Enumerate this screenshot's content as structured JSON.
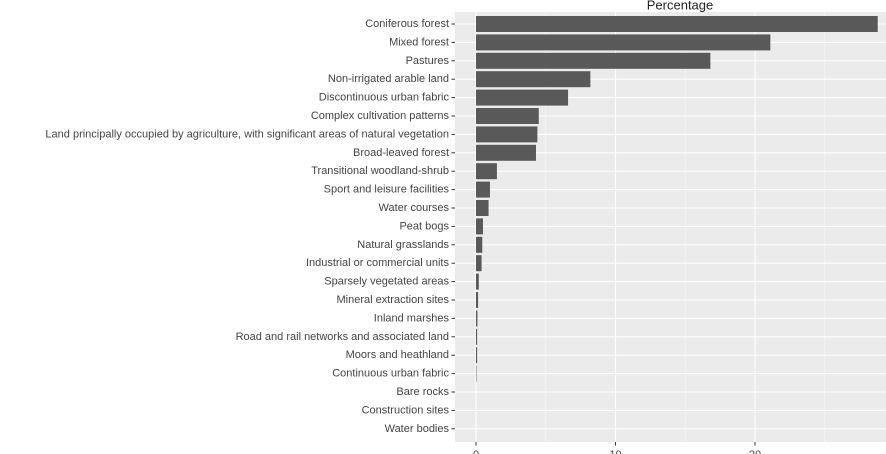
{
  "chart_data": {
    "type": "bar",
    "orientation": "horizontal",
    "title": "Percentage",
    "xlabel": "",
    "ylabel": "",
    "xlim": [
      0,
      29.5
    ],
    "x_ticks": [
      0,
      10,
      20
    ],
    "grid": true,
    "bar_color": "#595959",
    "panel_color": "#ebebeb",
    "categories": [
      "Coniferous forest",
      "Mixed forest",
      "Pastures",
      "Non-irrigated arable land",
      "Discontinuous urban fabric",
      "Complex cultivation patterns",
      "Land principally occupied by agriculture, with significant areas of natural vegetation",
      "Broad-leaved forest",
      "Transitional woodland-shrub",
      "Sport and leisure facilities",
      "Water courses",
      "Peat bogs",
      "Natural grasslands",
      "Industrial or commercial units",
      "Sparsely vegetated areas",
      "Mineral extraction sites",
      "Inland marshes",
      "Road and rail networks and associated land",
      "Moors and heathland",
      "Continuous urban fabric",
      "Bare rocks",
      "Construction sites",
      "Water bodies"
    ],
    "values": [
      28.8,
      21.1,
      16.8,
      8.2,
      6.6,
      4.5,
      4.4,
      4.3,
      1.5,
      1.0,
      0.9,
      0.5,
      0.45,
      0.4,
      0.2,
      0.15,
      0.1,
      0.08,
      0.08,
      0.03,
      0,
      0,
      0
    ]
  }
}
